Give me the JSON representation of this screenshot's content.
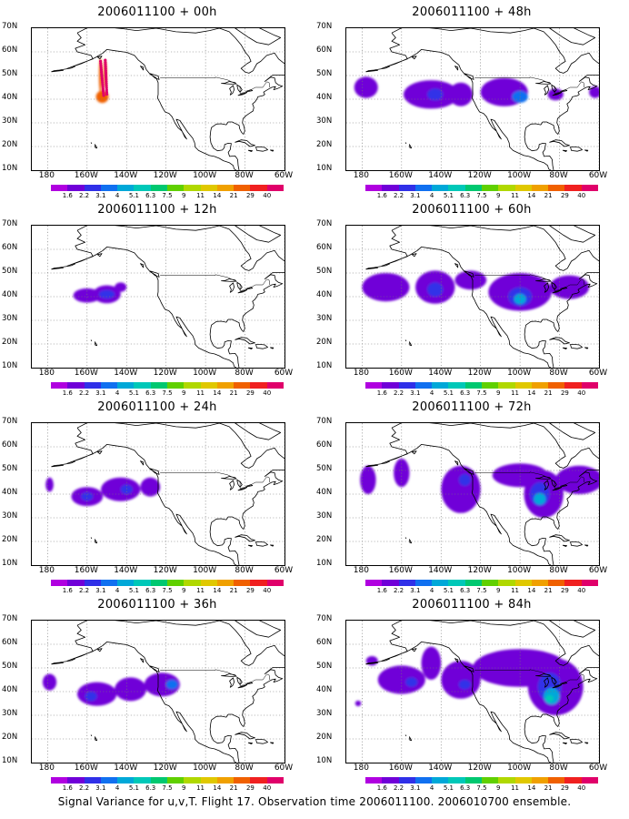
{
  "run_time": "2006011100",
  "panels": [
    {
      "title": "2006011100 + 00h",
      "blobs": [
        {
          "lon": -152.3,
          "lat": 41.0,
          "rx": 3.2,
          "ry": 2.6,
          "level": 11
        },
        {
          "lon": -153.2,
          "lat": 50.0,
          "rx": 0.8,
          "ry": 7.5,
          "level": 11
        },
        {
          "lon": -150.8,
          "lat": 50.5,
          "rx": 0.8,
          "ry": 6.0,
          "level": 11
        }
      ]
    },
    {
      "title": "2006011100 + 12h",
      "blobs": [
        {
          "lon": -160,
          "lat": 40.5,
          "rx": 7,
          "ry": 3.0,
          "level": 1
        },
        {
          "lon": -150,
          "lat": 41.0,
          "rx": 7,
          "ry": 3.8,
          "level": 1
        },
        {
          "lon": -143,
          "lat": 44.0,
          "rx": 3,
          "ry": 2.0,
          "level": 1
        },
        {
          "lon": -150,
          "lat": 41.0,
          "rx": 4,
          "ry": 1.8,
          "level": 2
        }
      ]
    },
    {
      "title": "2006011100 + 24h",
      "blobs": [
        {
          "lon": -179,
          "lat": 44,
          "rx": 2,
          "ry": 3,
          "level": 1
        },
        {
          "lon": -160,
          "lat": 39,
          "rx": 8,
          "ry": 4.0,
          "level": 1
        },
        {
          "lon": -143,
          "lat": 42,
          "rx": 10,
          "ry": 5.0,
          "level": 1
        },
        {
          "lon": -128,
          "lat": 43,
          "rx": 5,
          "ry": 4.0,
          "level": 1
        },
        {
          "lon": -160,
          "lat": 39,
          "rx": 3,
          "ry": 1.8,
          "level": 2
        },
        {
          "lon": -140,
          "lat": 42,
          "rx": 3,
          "ry": 2.0,
          "level": 2
        }
      ]
    },
    {
      "title": "2006011100 + 36h",
      "blobs": [
        {
          "lon": -179,
          "lat": 44,
          "rx": 3.5,
          "ry": 3.5,
          "level": 1
        },
        {
          "lon": -155,
          "lat": 39,
          "rx": 10,
          "ry": 5.0,
          "level": 1
        },
        {
          "lon": -138,
          "lat": 41,
          "rx": 8,
          "ry": 5.0,
          "level": 1
        },
        {
          "lon": -122,
          "lat": 43,
          "rx": 9,
          "ry": 5.0,
          "level": 1
        },
        {
          "lon": -158,
          "lat": 38,
          "rx": 3,
          "ry": 2.0,
          "level": 2
        },
        {
          "lon": -117,
          "lat": 43,
          "rx": 3,
          "ry": 2.0,
          "level": 3
        }
      ]
    },
    {
      "title": "2006011100 + 48h",
      "blobs": [
        {
          "lon": -178,
          "lat": 45,
          "rx": 6,
          "ry": 4.5,
          "level": 1
        },
        {
          "lon": -145,
          "lat": 42,
          "rx": 14,
          "ry": 6.0,
          "level": 1
        },
        {
          "lon": -108,
          "lat": 43,
          "rx": 12,
          "ry": 6.0,
          "level": 1
        },
        {
          "lon": -130,
          "lat": 42,
          "rx": 6,
          "ry": 5.0,
          "level": 1
        },
        {
          "lon": -82,
          "lat": 42,
          "rx": 4,
          "ry": 2.5,
          "level": 1
        },
        {
          "lon": -62,
          "lat": 43,
          "rx": 3,
          "ry": 2.5,
          "level": 1
        },
        {
          "lon": -143,
          "lat": 42,
          "rx": 4,
          "ry": 2.5,
          "level": 2
        },
        {
          "lon": -100,
          "lat": 41,
          "rx": 4,
          "ry": 2.5,
          "level": 3
        }
      ]
    },
    {
      "title": "2006011100 + 60h",
      "blobs": [
        {
          "lon": -168,
          "lat": 44,
          "rx": 12,
          "ry": 6.0,
          "level": 1
        },
        {
          "lon": -143,
          "lat": 44,
          "rx": 10,
          "ry": 7.0,
          "level": 1
        },
        {
          "lon": -100,
          "lat": 42,
          "rx": 16,
          "ry": 8.0,
          "level": 1
        },
        {
          "lon": -75,
          "lat": 44,
          "rx": 10,
          "ry": 5.0,
          "level": 1
        },
        {
          "lon": -125,
          "lat": 47,
          "rx": 8,
          "ry": 4.0,
          "level": 1
        },
        {
          "lon": -143,
          "lat": 43,
          "rx": 4,
          "ry": 3.0,
          "level": 2
        },
        {
          "lon": -100,
          "lat": 40,
          "rx": 6,
          "ry": 4.0,
          "level": 2
        },
        {
          "lon": -100,
          "lat": 39,
          "rx": 3,
          "ry": 2.2,
          "level": 4
        }
      ]
    },
    {
      "title": "2006011100 + 72h",
      "blobs": [
        {
          "lon": -177,
          "lat": 46,
          "rx": 4,
          "ry": 6.0,
          "level": 1
        },
        {
          "lon": -160,
          "lat": 49,
          "rx": 4,
          "ry": 6.0,
          "level": 1
        },
        {
          "lon": -130,
          "lat": 42,
          "rx": 10,
          "ry": 10.0,
          "level": 1
        },
        {
          "lon": -100,
          "lat": 48,
          "rx": 14,
          "ry": 5.0,
          "level": 1
        },
        {
          "lon": -88,
          "lat": 40,
          "rx": 10,
          "ry": 10.0,
          "level": 1
        },
        {
          "lon": -70,
          "lat": 46,
          "rx": 12,
          "ry": 6.0,
          "level": 1
        },
        {
          "lon": -128,
          "lat": 46,
          "rx": 3,
          "ry": 2.5,
          "level": 2
        },
        {
          "lon": -90,
          "lat": 40,
          "rx": 5,
          "ry": 5.0,
          "level": 2
        },
        {
          "lon": -90,
          "lat": 38,
          "rx": 3,
          "ry": 2.5,
          "level": 4
        }
      ]
    },
    {
      "title": "2006011100 + 84h",
      "blobs": [
        {
          "lon": -182,
          "lat": 35,
          "rx": 1.5,
          "ry": 1.2,
          "level": 1
        },
        {
          "lon": -175,
          "lat": 53,
          "rx": 3,
          "ry": 2.0,
          "level": 1
        },
        {
          "lon": -160,
          "lat": 45,
          "rx": 12,
          "ry": 6.0,
          "level": 1
        },
        {
          "lon": -145,
          "lat": 52,
          "rx": 5,
          "ry": 7.0,
          "level": 1
        },
        {
          "lon": -130,
          "lat": 45,
          "rx": 10,
          "ry": 8.0,
          "level": 1
        },
        {
          "lon": -100,
          "lat": 50,
          "rx": 24,
          "ry": 8.0,
          "level": 1
        },
        {
          "lon": -82,
          "lat": 42,
          "rx": 14,
          "ry": 12.0,
          "level": 1
        },
        {
          "lon": -155,
          "lat": 44,
          "rx": 3,
          "ry": 2.0,
          "level": 2
        },
        {
          "lon": -128,
          "lat": 43,
          "rx": 3,
          "ry": 2.0,
          "level": 2
        },
        {
          "lon": -85,
          "lat": 42,
          "rx": 6,
          "ry": 6.0,
          "level": 2
        },
        {
          "lon": -84,
          "lat": 38,
          "rx": 4,
          "ry": 3.5,
          "level": 4
        },
        {
          "lon": -85,
          "lat": 37,
          "rx": 2,
          "ry": 1.5,
          "level": 5
        }
      ]
    }
  ],
  "map": {
    "lon_range": [
      -188,
      -60
    ],
    "lat_range": [
      10,
      70
    ],
    "lat_labels": [
      "10N",
      "20N",
      "30N",
      "40N",
      "50N",
      "60N",
      "70N"
    ],
    "lon_labels": [
      "180",
      "160W",
      "140W",
      "120W",
      "100W",
      "80W",
      "60W"
    ],
    "lon_values": [
      -180,
      -160,
      -140,
      -120,
      -100,
      -80,
      -60
    ]
  },
  "colorbar": {
    "labels": [
      "1.6",
      "2.2",
      "3.1",
      "4",
      "5.1",
      "6.3",
      "7.5",
      "9",
      "11",
      "14",
      "21",
      "29",
      "40"
    ],
    "colors": [
      "#b000e0",
      "#7000d8",
      "#3030e8",
      "#1070f0",
      "#00a8d8",
      "#00c8b8",
      "#00c870",
      "#60d000",
      "#b0d800",
      "#e0c800",
      "#f0a000",
      "#f06000",
      "#f02020",
      "#e0006a"
    ]
  },
  "caption": "Signal Variance for u,v,T. Flight 17. Observation time 2006011100. 2006010700 ensemble."
}
